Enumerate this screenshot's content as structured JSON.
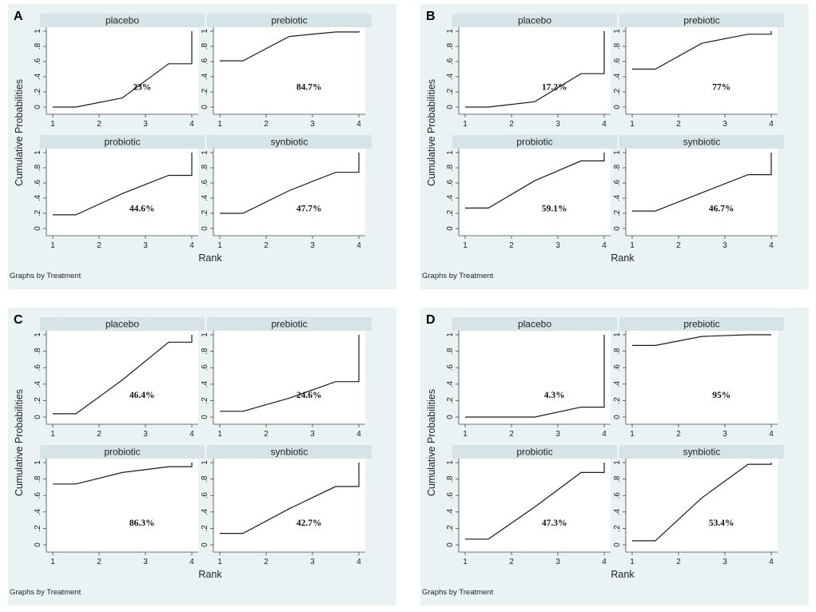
{
  "colors": {
    "background": "#eaf2f3",
    "plot_area": "#ffffff",
    "strip": "#d6e3e7",
    "line": "#1a1a1a"
  },
  "chart_data": [
    {
      "type": "line",
      "letter": "A",
      "ylabel": "Cumulative Probabilities",
      "xlabel": "Rank",
      "footer": "Graphs by Treatment",
      "x_ticks": [
        "1",
        "2",
        "3",
        "4"
      ],
      "y_ticks": [
        "0",
        ".2",
        ".4",
        ".6",
        ".8",
        "1"
      ],
      "xlim": [
        1,
        4
      ],
      "ylim": [
        0,
        1
      ],
      "panels": [
        {
          "title": "placebo",
          "label": "23%",
          "x": [
            1,
            1.5,
            2.5,
            3.5,
            4,
            4
          ],
          "y": [
            0,
            0,
            0.12,
            0.57,
            0.57,
            1
          ]
        },
        {
          "title": "prebiotic",
          "label": "84.7%",
          "x": [
            1,
            1.5,
            2.5,
            3.5,
            4,
            4
          ],
          "y": [
            0.61,
            0.61,
            0.93,
            0.99,
            0.99,
            1
          ]
        },
        {
          "title": "probiotic",
          "label": "44.6%",
          "x": [
            1,
            1.5,
            2.5,
            3.5,
            4,
            4
          ],
          "y": [
            0.18,
            0.18,
            0.46,
            0.7,
            0.7,
            1
          ]
        },
        {
          "title": "synbiotic",
          "label": "47.7%",
          "x": [
            1,
            1.5,
            2.5,
            3.5,
            4,
            4
          ],
          "y": [
            0.2,
            0.2,
            0.5,
            0.74,
            0.74,
            1
          ]
        }
      ]
    },
    {
      "type": "line",
      "letter": "B",
      "ylabel": "Cumulative Probabilities",
      "xlabel": "Rank",
      "footer": "Graphs by Treatment",
      "x_ticks": [
        "1",
        "2",
        "3",
        "4"
      ],
      "y_ticks": [
        "0",
        ".2",
        ".4",
        ".6",
        ".8",
        "1"
      ],
      "xlim": [
        1,
        4
      ],
      "ylim": [
        0,
        1
      ],
      "panels": [
        {
          "title": "placebo",
          "label": "17.2%",
          "x": [
            1,
            1.5,
            2.5,
            3.5,
            4,
            4
          ],
          "y": [
            0,
            0,
            0.07,
            0.44,
            0.44,
            1
          ]
        },
        {
          "title": "prebiotic",
          "label": "77%",
          "x": [
            1,
            1.5,
            2.5,
            3.5,
            4,
            4
          ],
          "y": [
            0.5,
            0.5,
            0.84,
            0.96,
            0.96,
            1
          ]
        },
        {
          "title": "probiotic",
          "label": "59.1%",
          "x": [
            1,
            1.5,
            2.5,
            3.5,
            4,
            4
          ],
          "y": [
            0.27,
            0.27,
            0.63,
            0.89,
            0.89,
            1
          ]
        },
        {
          "title": "synbiotic",
          "label": "46.7%",
          "x": [
            1,
            1.5,
            2.5,
            3.5,
            4,
            4
          ],
          "y": [
            0.23,
            0.23,
            0.47,
            0.71,
            0.71,
            1
          ]
        }
      ]
    },
    {
      "type": "line",
      "letter": "C",
      "ylabel": "Cumulative Probabilities",
      "xlabel": "Rank",
      "footer": "Graphs by Treatment",
      "x_ticks": [
        "1",
        "2",
        "3",
        "4"
      ],
      "y_ticks": [
        "0",
        ".2",
        ".4",
        ".6",
        ".8",
        "1"
      ],
      "xlim": [
        1,
        4
      ],
      "ylim": [
        0,
        1
      ],
      "panels": [
        {
          "title": "placebo",
          "label": "46.4%",
          "x": [
            1,
            1.5,
            2.5,
            3.5,
            4,
            4
          ],
          "y": [
            0.04,
            0.04,
            0.45,
            0.91,
            0.91,
            1
          ]
        },
        {
          "title": "prebiotic",
          "label": "24.6%",
          "x": [
            1,
            1.5,
            2.5,
            3.5,
            4,
            4
          ],
          "y": [
            0.07,
            0.07,
            0.23,
            0.43,
            0.43,
            1
          ]
        },
        {
          "title": "probiotic",
          "label": "86.3%",
          "x": [
            1,
            1.5,
            2.5,
            3.5,
            4,
            4
          ],
          "y": [
            0.74,
            0.74,
            0.88,
            0.95,
            0.95,
            1
          ]
        },
        {
          "title": "synbiotic",
          "label": "42.7%",
          "x": [
            1,
            1.5,
            2.5,
            3.5,
            4,
            4
          ],
          "y": [
            0.14,
            0.14,
            0.44,
            0.71,
            0.71,
            1
          ]
        }
      ]
    },
    {
      "type": "line",
      "letter": "D",
      "ylabel": "Cumulative Probabilities",
      "xlabel": "Rank",
      "footer": "Graphs by Treatment",
      "x_ticks": [
        "1",
        "2",
        "3",
        "4"
      ],
      "y_ticks": [
        "0",
        ".2",
        ".4",
        ".6",
        ".8",
        "1"
      ],
      "xlim": [
        1,
        4
      ],
      "ylim": [
        0,
        1
      ],
      "panels": [
        {
          "title": "placebo",
          "label": "4.3%",
          "x": [
            1,
            1.5,
            2.5,
            3.5,
            4,
            4
          ],
          "y": [
            0,
            0,
            0,
            0.12,
            0.12,
            1
          ]
        },
        {
          "title": "prebiotic",
          "label": "95%",
          "x": [
            1,
            1.5,
            2.5,
            3.5,
            4,
            4
          ],
          "y": [
            0.87,
            0.87,
            0.98,
            1,
            1,
            1
          ]
        },
        {
          "title": "probiotic",
          "label": "47.3%",
          "x": [
            1,
            1.5,
            2.5,
            3.5,
            4,
            4
          ],
          "y": [
            0.07,
            0.07,
            0.46,
            0.88,
            0.88,
            1
          ]
        },
        {
          "title": "synbiotic",
          "label": "53.4%",
          "x": [
            1,
            1.5,
            2.5,
            3.5,
            4,
            4
          ],
          "y": [
            0.05,
            0.05,
            0.57,
            0.98,
            0.98,
            1
          ]
        }
      ]
    }
  ]
}
